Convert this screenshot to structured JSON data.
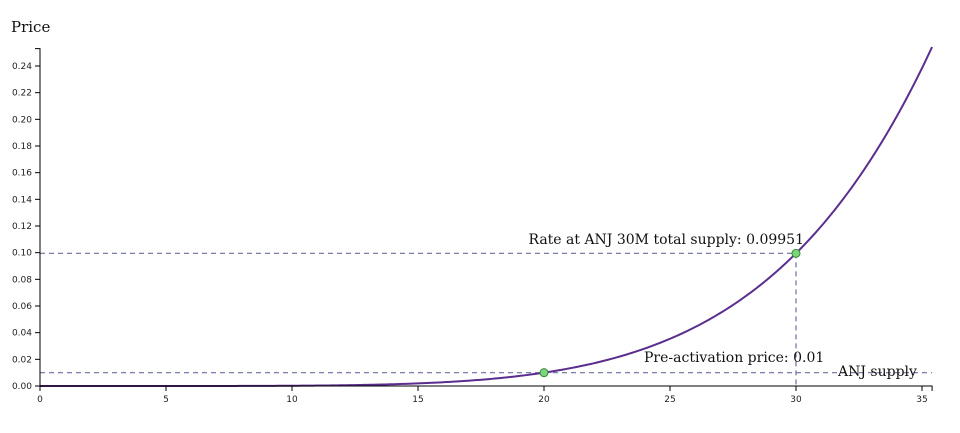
{
  "chart_data": {
    "type": "line",
    "ylabel": "Price",
    "xlabel": "ANJ supply",
    "xlim": [
      0,
      35.4
    ],
    "ylim": [
      0,
      0.253
    ],
    "x_ticks": [
      "0",
      "5",
      "10",
      "15",
      "20",
      "25",
      "30",
      "35"
    ],
    "y_ticks": [
      "0.00",
      "0.02",
      "0.04",
      "0.06",
      "0.08",
      "0.10",
      "0.12",
      "0.14",
      "0.16",
      "0.18",
      "0.20",
      "0.22",
      "0.24"
    ],
    "curve": {
      "anchor_x": 20,
      "anchor_y": 0.01,
      "exponent": 5.667,
      "x_min": 0,
      "x_max": 35.4
    },
    "points": [
      {
        "x": 20,
        "y": 0.01,
        "label": "Pre-activation price: 0.01"
      },
      {
        "x": 30,
        "y": 0.09951,
        "label": "Rate at ANJ 30M total supply: 0.09951"
      }
    ],
    "colors": {
      "curve": "#5b2d8e",
      "guide": "#6a6fa0",
      "point": "#7ad67a",
      "point_stroke": "#3a8a3a"
    }
  }
}
